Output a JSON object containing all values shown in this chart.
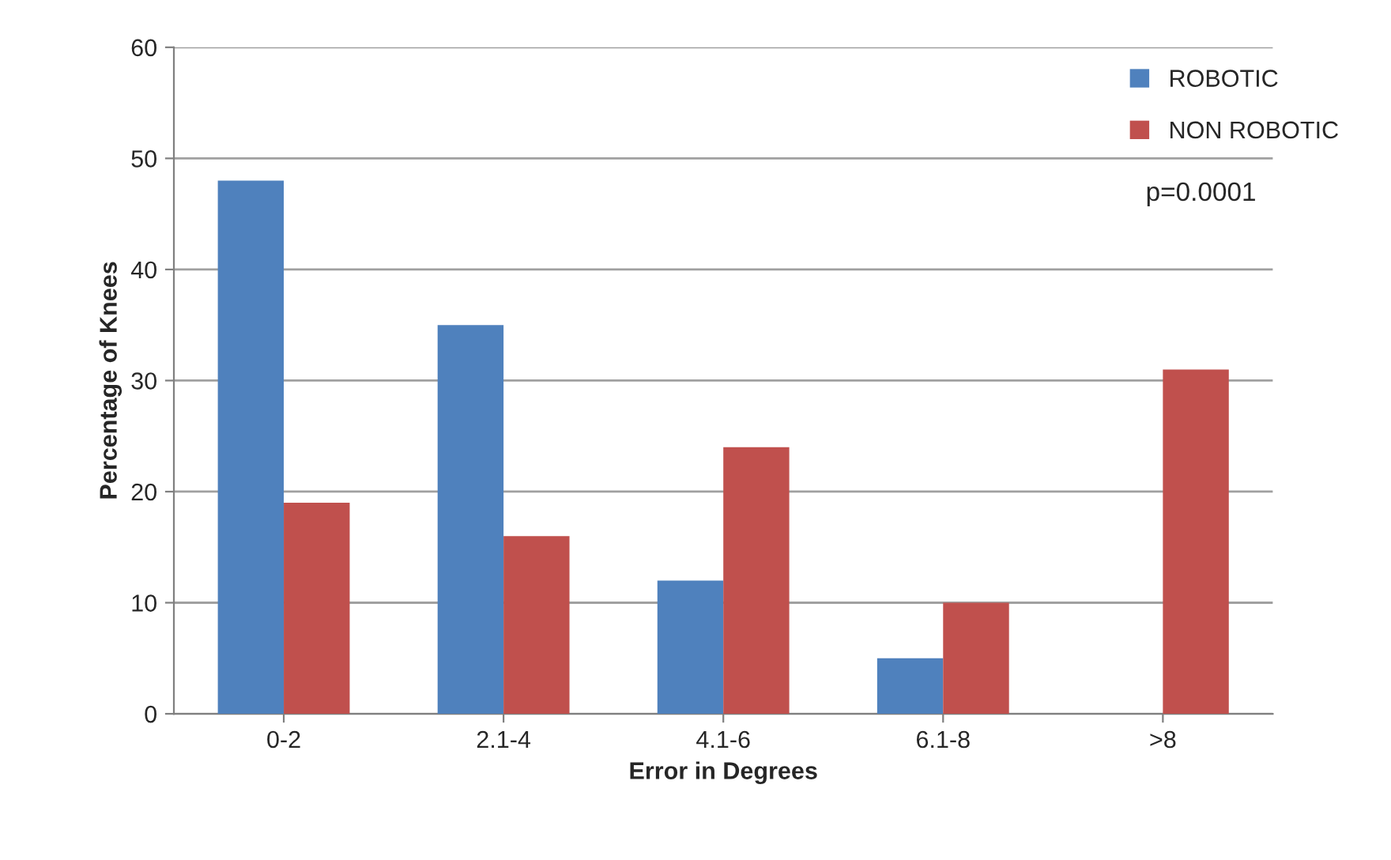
{
  "chart_data": {
    "type": "bar",
    "xlabel": "Error in Degrees",
    "ylabel": "Percentage of Knees",
    "categories": [
      "0-2",
      "2.1-4",
      "4.1-6",
      "6.1-8",
      ">8"
    ],
    "series": [
      {
        "name": "ROBOTIC",
        "color": "#4f81bd",
        "values": [
          48,
          35,
          12,
          5,
          null
        ]
      },
      {
        "name": "NON ROBOTIC",
        "color": "#c0504d",
        "values": [
          19,
          16,
          24,
          10,
          31
        ]
      }
    ],
    "ylim": [
      0,
      60
    ],
    "yticks": [
      0,
      10,
      20,
      30,
      40,
      50,
      60
    ],
    "grid": "y",
    "legend": "top right",
    "annotations": [
      "p=0.0001"
    ]
  }
}
